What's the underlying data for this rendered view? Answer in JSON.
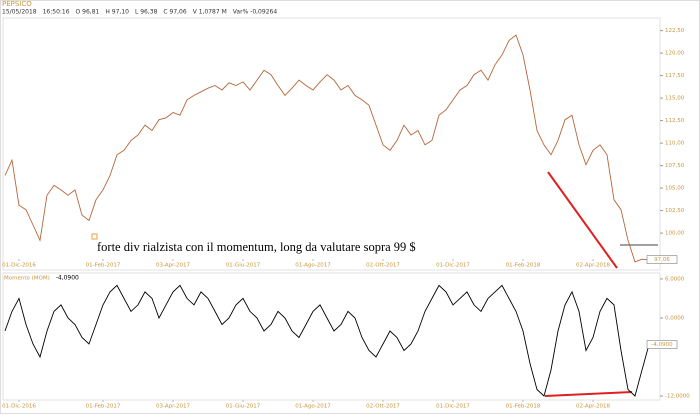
{
  "header": {
    "symbol": "PEPSICO",
    "info": [
      "15/05/2018",
      "16:50:16",
      "O 96,81",
      "H 97,10",
      "L 96,38",
      "C 97,06",
      "V 1,0787 M",
      "Var% -0,09264"
    ]
  },
  "annotation": "forte div rialzista con il momentum, long da valutare sopra 99 $",
  "chart_data": [
    {
      "type": "line",
      "color": "#b5663a",
      "values": [
        106.4,
        108.1,
        103.1,
        102.6,
        100.9,
        99.2,
        104.2,
        105.3,
        104.8,
        104.2,
        104.8,
        102.0,
        101.4,
        103.7,
        104.8,
        106.4,
        108.7,
        109.2,
        110.3,
        110.9,
        112.0,
        111.4,
        112.6,
        112.8,
        113.4,
        113.1,
        114.8,
        115.3,
        115.7,
        116.1,
        116.4,
        115.9,
        116.7,
        116.4,
        116.8,
        115.9,
        117.0,
        118.1,
        117.6,
        116.4,
        115.3,
        116.1,
        117.0,
        116.4,
        115.9,
        116.8,
        117.6,
        117.0,
        115.9,
        116.4,
        115.3,
        114.8,
        114.2,
        112.0,
        109.8,
        109.2,
        110.3,
        112.0,
        110.9,
        111.4,
        109.8,
        110.3,
        113.1,
        113.7,
        114.8,
        115.9,
        116.4,
        117.6,
        118.1,
        117.0,
        118.7,
        119.8,
        121.4,
        122.0,
        119.8,
        115.9,
        111.4,
        109.8,
        108.7,
        110.3,
        112.6,
        113.1,
        109.8,
        107.6,
        109.2,
        109.8,
        108.7,
        103.7,
        102.6,
        99.2,
        96.8,
        97.1,
        97.06
      ],
      "xlim": [
        0,
        92
      ],
      "xticks": [
        {
          "value": 2,
          "label": "01-Dic-2016"
        },
        {
          "value": 14,
          "label": "01-Feb-2017"
        },
        {
          "value": 24,
          "label": "03-Apr-2017"
        },
        {
          "value": 34,
          "label": "01-Giu-2017"
        },
        {
          "value": 44,
          "label": "01-Ago-2017"
        },
        {
          "value": 54,
          "label": "02-Ott-2017"
        },
        {
          "value": 64,
          "label": "01-Dic-2017"
        },
        {
          "value": 74,
          "label": "01-Feb-2018"
        },
        {
          "value": 84,
          "label": "02-Apr-2018"
        }
      ],
      "ylim": [
        95.9,
        123.9
      ],
      "yticks": [
        {
          "value": 100,
          "label": "100,00"
        },
        {
          "value": 102.5,
          "label": "102,50"
        },
        {
          "value": 105,
          "label": "105,00"
        },
        {
          "value": 107.5,
          "label": "107,50"
        },
        {
          "value": 110,
          "label": "110,00"
        },
        {
          "value": 112.5,
          "label": "112,50"
        },
        {
          "value": 115,
          "label": "115,00"
        },
        {
          "value": 117.5,
          "label": "117,50"
        },
        {
          "value": 120,
          "label": "120,00"
        },
        {
          "value": 122.5,
          "label": "122,50"
        }
      ],
      "last_label": {
        "value": 97.06,
        "label": "97,06"
      }
    },
    {
      "type": "line",
      "title": "Momento (MOM)",
      "color": "#000000",
      "values": [
        -2,
        1,
        3,
        -1,
        -4,
        -6,
        -2,
        1,
        2,
        0,
        -1,
        -3,
        -4,
        -1,
        2,
        4,
        5,
        3,
        1,
        2,
        4,
        3,
        0,
        2,
        4,
        5,
        3,
        2,
        4,
        3,
        1,
        -1,
        0,
        2,
        3,
        1,
        0,
        -2,
        -1,
        1,
        0,
        -2,
        -3,
        -1,
        1,
        2,
        0,
        -2,
        -1,
        1,
        0,
        -3,
        -5,
        -6,
        -4,
        -2,
        -3,
        -5,
        -4,
        -2,
        1,
        3,
        5,
        4,
        2,
        3,
        4,
        2,
        1,
        3,
        4,
        5,
        3,
        1,
        -2,
        -7,
        -11,
        -12,
        -8,
        -2,
        2,
        4,
        1,
        -5,
        -3,
        1,
        3,
        2,
        -5,
        -11,
        -12,
        -8,
        -4.09
      ],
      "xlim": [
        0,
        92
      ],
      "xticks": [
        {
          "value": 2,
          "label": "01-Dic-2016"
        },
        {
          "value": 14,
          "label": "01-Feb-2017"
        },
        {
          "value": 24,
          "label": "03-Apr-2017"
        },
        {
          "value": 34,
          "label": "01-Giu-2017"
        },
        {
          "value": 44,
          "label": "01-Ago-2017"
        },
        {
          "value": 54,
          "label": "02-Ott-2017"
        },
        {
          "value": 64,
          "label": "01-Dic-2017"
        },
        {
          "value": 74,
          "label": "01-Feb-2018"
        },
        {
          "value": 84,
          "label": "02-Apr-2018"
        }
      ],
      "ylim": [
        -12.3,
        6.6
      ],
      "yticks": [
        {
          "value": 6,
          "label": "6,0000"
        },
        {
          "value": 0,
          "label": "0,0000"
        },
        {
          "value": -12,
          "label": "-12,0000"
        }
      ],
      "last_label": {
        "value": -4.09,
        "label": "-4,0900"
      }
    }
  ]
}
